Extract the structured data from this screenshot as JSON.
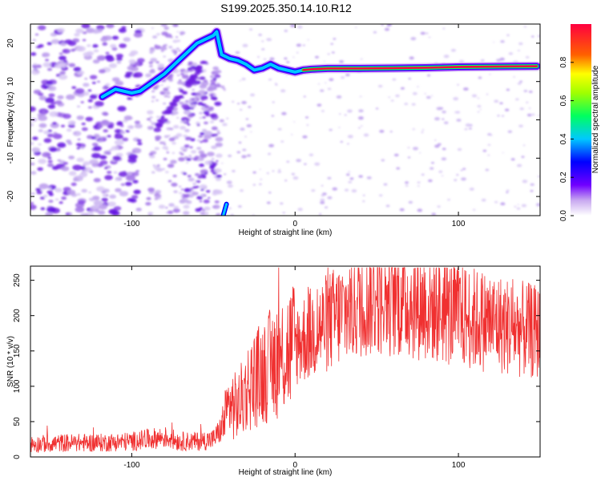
{
  "title": "S199.2025.350.14.10.R12",
  "chart_data": [
    {
      "type": "heatmap",
      "name": "spectrogram",
      "xlabel": "Height of straight line (km)",
      "ylabel": "Frequency (Hz)",
      "xlim": [
        -162,
        150
      ],
      "ylim": [
        -25,
        25
      ],
      "xticks": [
        -100,
        0,
        100
      ],
      "yticks": [
        -20,
        -10,
        0,
        10,
        20
      ],
      "ridge": {
        "x": [
          -118,
          -110,
          -100,
          -95,
          -90,
          -85,
          -80,
          -75,
          -70,
          -65,
          -60,
          -55,
          -50,
          -48,
          -45,
          -40,
          -35,
          -30,
          -25,
          -20,
          -15,
          -10,
          -5,
          0,
          5,
          10,
          20,
          40,
          60,
          80,
          100,
          120,
          148
        ],
        "y": [
          6,
          8,
          7,
          7.5,
          9,
          10.5,
          12,
          14,
          16,
          18,
          20,
          21,
          22,
          23,
          17,
          16,
          15.5,
          14.5,
          13,
          13.5,
          14.5,
          13.5,
          13,
          12.5,
          13,
          13.2,
          13.4,
          13.4,
          13.5,
          13.6,
          13.8,
          13.9,
          14
        ]
      },
      "colorbar": {
        "label": "Normalized spectral amplitude",
        "range": [
          0,
          1
        ],
        "ticks": [
          "0.0",
          "0.2",
          "0.4",
          "0.6",
          "0.8"
        ]
      }
    },
    {
      "type": "line",
      "name": "snr",
      "xlabel": "Height of straight line (km)",
      "ylabel": "SNR (10 * v/v)",
      "xlim": [
        -162,
        150
      ],
      "ylim": [
        0,
        270
      ],
      "xticks": [
        -100,
        0,
        100
      ],
      "yticks": [
        0,
        50,
        100,
        150,
        200,
        250
      ],
      "color": "#f03030",
      "series": [
        {
          "name": "SNR",
          "x": [
            -162,
            -140,
            -120,
            -100,
            -90,
            -80,
            -70,
            -60,
            -50,
            -45,
            -40,
            -35,
            -30,
            -25,
            -20,
            -15,
            -10,
            -5,
            0,
            10,
            20,
            30,
            40,
            50,
            60,
            70,
            80,
            90,
            100,
            110,
            120,
            130,
            140,
            150
          ],
          "y": [
            18,
            20,
            20,
            22,
            25,
            28,
            22,
            22,
            25,
            40,
            75,
            70,
            95,
            110,
            120,
            130,
            140,
            150,
            160,
            175,
            190,
            205,
            220,
            228,
            225,
            220,
            215,
            208,
            200,
            195,
            192,
            185,
            180,
            175
          ]
        }
      ]
    }
  ]
}
